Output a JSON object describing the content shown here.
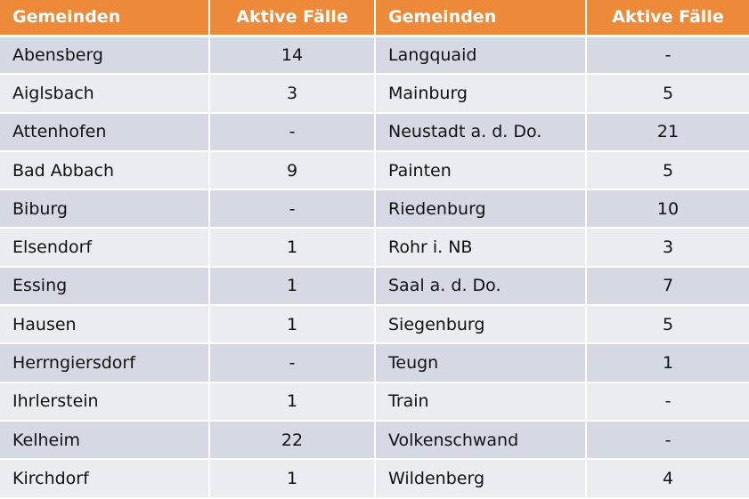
{
  "headers": [
    "Gemeinden",
    "Aktive Fälle",
    "Gemeinden",
    "Aktive Fälle"
  ],
  "rows": [
    [
      "Abensberg",
      "14",
      "Langquaid",
      "-"
    ],
    [
      "Aiglsbach",
      "3",
      "Mainburg",
      "5"
    ],
    [
      "Attenhofen",
      "-",
      "Neustadt a. d. Do.",
      "21"
    ],
    [
      "Bad Abbach",
      "9",
      "Painten",
      "5"
    ],
    [
      "Biburg",
      "-",
      "Riedenburg",
      "10"
    ],
    [
      "Elsendorf",
      "1",
      "Rohr i. NB",
      "3"
    ],
    [
      "Essing",
      "1",
      "Saal a. d. Do.",
      "7"
    ],
    [
      "Hausen",
      "1",
      "Siegenburg",
      "5"
    ],
    [
      "Herrngiersdorf",
      "-",
      "Teugn",
      "1"
    ],
    [
      "Ihrlerstein",
      "1",
      "Train",
      "-"
    ],
    [
      "Kelheim",
      "22",
      "Volkenschwand",
      "-"
    ],
    [
      "Kirchdorf",
      "1",
      "Wildenberg",
      "4"
    ]
  ],
  "colors": {
    "header_bg": "#ec8a3a",
    "header_text": "#ffffff",
    "row_dark": "#d5d9e3",
    "row_light": "#ebecf1"
  }
}
